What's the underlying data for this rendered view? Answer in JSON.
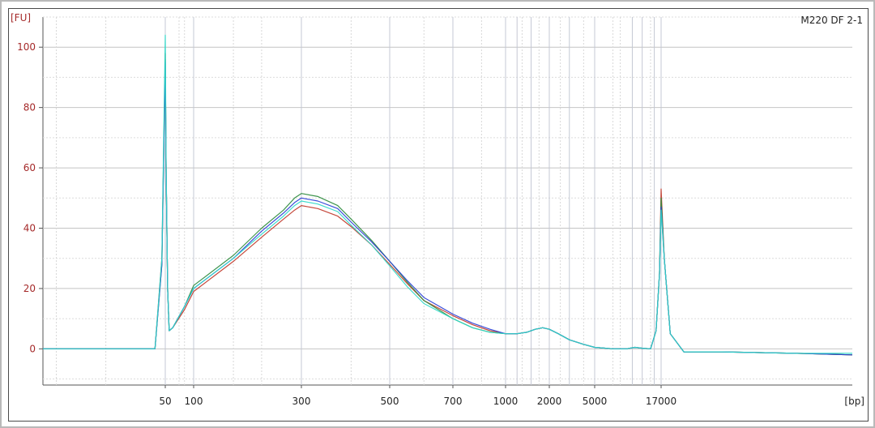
{
  "chart_data": {
    "type": "line",
    "title": "M220 DF 2-1",
    "ylabel": "[FU]",
    "xlabel": "[bp]",
    "ylim": [
      -12,
      110
    ],
    "yticks": [
      0,
      20,
      40,
      60,
      80,
      100
    ],
    "xtick_labels": [
      "50",
      "100",
      "300",
      "500",
      "700",
      "1000",
      "2000",
      "5000",
      "17000"
    ],
    "x_scale": "ladder (non-linear size axis)",
    "grid": true,
    "colors": {
      "red": "#c0392b",
      "green": "#2e8b3e",
      "blue": "#2a3fd6",
      "cyan": "#2fd8c8",
      "ytick": "#a52a2a",
      "grid": "#c8c8c8"
    },
    "series": [
      {
        "color": "#c0392b",
        "values": [
          [
            24,
            0
          ],
          [
            40,
            0
          ],
          [
            47,
            0
          ],
          [
            49,
            30
          ],
          [
            50,
            98
          ],
          [
            51,
            60
          ],
          [
            53,
            20
          ],
          [
            55,
            6
          ],
          [
            60,
            7
          ],
          [
            80,
            13
          ],
          [
            100,
            19
          ],
          [
            150,
            29
          ],
          [
            200,
            37
          ],
          [
            250,
            43
          ],
          [
            280,
            46
          ],
          [
            300,
            47.5
          ],
          [
            330,
            46.5
          ],
          [
            370,
            44
          ],
          [
            400,
            40.5
          ],
          [
            450,
            34.5
          ],
          [
            500,
            28
          ],
          [
            550,
            21.5
          ],
          [
            600,
            16
          ],
          [
            700,
            11
          ],
          [
            800,
            8
          ],
          [
            900,
            6
          ],
          [
            1000,
            5
          ],
          [
            1200,
            5
          ],
          [
            1400,
            5.5
          ],
          [
            1600,
            6.5
          ],
          [
            1800,
            7
          ],
          [
            2000,
            6.5
          ],
          [
            2400,
            5
          ],
          [
            3000,
            3
          ],
          [
            4000,
            1.5
          ],
          [
            5000,
            0.5
          ],
          [
            7000,
            0
          ],
          [
            9000,
            0
          ],
          [
            10500,
            0.5
          ],
          [
            12000,
            0.2
          ],
          [
            14000,
            0
          ],
          [
            15500,
            6
          ],
          [
            16500,
            25
          ],
          [
            17000,
            53
          ],
          [
            17500,
            30
          ],
          [
            18500,
            5
          ],
          [
            21000,
            -1
          ],
          [
            30000,
            -1
          ],
          [
            60000,
            -1.5
          ],
          [
            100000,
            -2
          ]
        ]
      },
      {
        "color": "#2e8b3e",
        "values": [
          [
            24,
            0
          ],
          [
            40,
            0
          ],
          [
            47,
            0
          ],
          [
            49,
            28
          ],
          [
            50,
            96
          ],
          [
            51,
            60
          ],
          [
            53,
            20
          ],
          [
            55,
            6
          ],
          [
            60,
            7
          ],
          [
            80,
            14
          ],
          [
            100,
            21
          ],
          [
            150,
            31
          ],
          [
            200,
            40
          ],
          [
            250,
            46
          ],
          [
            280,
            50
          ],
          [
            300,
            51.5
          ],
          [
            330,
            50.5
          ],
          [
            370,
            47.5
          ],
          [
            400,
            43
          ],
          [
            450,
            36
          ],
          [
            500,
            29
          ],
          [
            550,
            22
          ],
          [
            600,
            16
          ],
          [
            700,
            10
          ],
          [
            800,
            7
          ],
          [
            900,
            5.5
          ],
          [
            1000,
            5
          ],
          [
            1200,
            5
          ],
          [
            1400,
            5.5
          ],
          [
            1600,
            6.5
          ],
          [
            1800,
            7
          ],
          [
            2000,
            6.5
          ],
          [
            2400,
            5
          ],
          [
            3000,
            3
          ],
          [
            4000,
            1.5
          ],
          [
            5000,
            0.5
          ],
          [
            7000,
            0
          ],
          [
            9000,
            0
          ],
          [
            10500,
            0.5
          ],
          [
            12000,
            0.2
          ],
          [
            14000,
            0
          ],
          [
            15500,
            6
          ],
          [
            16500,
            25
          ],
          [
            17000,
            50
          ],
          [
            17500,
            30
          ],
          [
            18500,
            5
          ],
          [
            21000,
            -1
          ],
          [
            30000,
            -1
          ],
          [
            60000,
            -1.5
          ],
          [
            100000,
            -2
          ]
        ]
      },
      {
        "color": "#2a3fd6",
        "values": [
          [
            24,
            0
          ],
          [
            40,
            0
          ],
          [
            47,
            0
          ],
          [
            49,
            28
          ],
          [
            50,
            95
          ],
          [
            51,
            60
          ],
          [
            53,
            20
          ],
          [
            55,
            6
          ],
          [
            60,
            7
          ],
          [
            80,
            14
          ],
          [
            100,
            20
          ],
          [
            150,
            30
          ],
          [
            200,
            39
          ],
          [
            250,
            45
          ],
          [
            280,
            48.5
          ],
          [
            300,
            50
          ],
          [
            330,
            49
          ],
          [
            370,
            46.5
          ],
          [
            400,
            42
          ],
          [
            450,
            35.5
          ],
          [
            500,
            29
          ],
          [
            550,
            22.5
          ],
          [
            600,
            17
          ],
          [
            700,
            11.5
          ],
          [
            800,
            8.5
          ],
          [
            900,
            6.5
          ],
          [
            1000,
            5
          ],
          [
            1200,
            5
          ],
          [
            1400,
            5.5
          ],
          [
            1600,
            6.5
          ],
          [
            1800,
            7
          ],
          [
            2000,
            6.5
          ],
          [
            2400,
            5
          ],
          [
            3000,
            3
          ],
          [
            4000,
            1.5
          ],
          [
            5000,
            0.5
          ],
          [
            7000,
            0
          ],
          [
            9000,
            0
          ],
          [
            10500,
            0.5
          ],
          [
            12000,
            0.2
          ],
          [
            14000,
            0
          ],
          [
            15500,
            6
          ],
          [
            16500,
            25
          ],
          [
            17000,
            47
          ],
          [
            17500,
            30
          ],
          [
            18500,
            5
          ],
          [
            21000,
            -1
          ],
          [
            30000,
            -1
          ],
          [
            60000,
            -1.5
          ],
          [
            100000,
            -2
          ]
        ]
      },
      {
        "color": "#2fd8c8",
        "values": [
          [
            24,
            0
          ],
          [
            40,
            0
          ],
          [
            47,
            0
          ],
          [
            49,
            30
          ],
          [
            50,
            104
          ],
          [
            51,
            62
          ],
          [
            53,
            20
          ],
          [
            55,
            6
          ],
          [
            60,
            7
          ],
          [
            80,
            14
          ],
          [
            100,
            20
          ],
          [
            150,
            30
          ],
          [
            200,
            38
          ],
          [
            250,
            44
          ],
          [
            280,
            47.5
          ],
          [
            300,
            49
          ],
          [
            330,
            48
          ],
          [
            370,
            45.5
          ],
          [
            400,
            41
          ],
          [
            450,
            34.5
          ],
          [
            500,
            27.5
          ],
          [
            550,
            20.5
          ],
          [
            600,
            15
          ],
          [
            700,
            10
          ],
          [
            800,
            7
          ],
          [
            900,
            5.5
          ],
          [
            1000,
            5
          ],
          [
            1200,
            5
          ],
          [
            1400,
            5.5
          ],
          [
            1600,
            6.5
          ],
          [
            1800,
            7
          ],
          [
            2000,
            6.5
          ],
          [
            2400,
            5
          ],
          [
            3000,
            3
          ],
          [
            4000,
            1.5
          ],
          [
            5000,
            0.5
          ],
          [
            7000,
            0
          ],
          [
            9000,
            0
          ],
          [
            10500,
            0.5
          ],
          [
            12000,
            0.2
          ],
          [
            14000,
            0
          ],
          [
            15500,
            6
          ],
          [
            16500,
            25
          ],
          [
            17000,
            46
          ],
          [
            17500,
            30
          ],
          [
            18500,
            5
          ],
          [
            21000,
            -1
          ],
          [
            30000,
            -1
          ],
          [
            60000,
            -1.5
          ],
          [
            100000,
            -1.5
          ]
        ]
      }
    ]
  }
}
